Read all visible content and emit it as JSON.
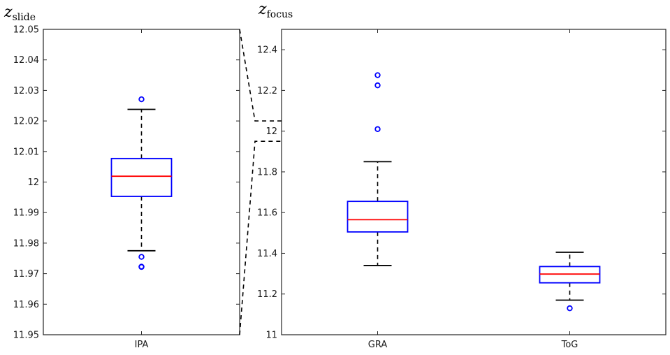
{
  "chart_data": [
    {
      "type": "box",
      "title_symbol": "z",
      "title_subscript": "slide",
      "ylim": [
        11.95,
        12.05
      ],
      "yticks": [
        "11.95",
        "11.96",
        "11.97",
        "11.98",
        "11.99",
        "12",
        "12.01",
        "12.02",
        "12.03",
        "12.04",
        "12.05"
      ],
      "categories": [
        "IPA"
      ],
      "boxes": [
        {
          "label": "IPA",
          "whisker_low": 11.9775,
          "q1": 11.9953,
          "median": 12.0019,
          "q3": 12.0077,
          "whisker_high": 12.0238,
          "outliers": [
            12.0271,
            11.9755,
            11.9722,
            11.9723
          ]
        }
      ],
      "colors": {
        "box": "#0000ff",
        "median": "#ff0000",
        "whisker": "#000000",
        "outlier": "#0000ff"
      }
    },
    {
      "type": "box",
      "title_symbol": "z",
      "title_subscript": "focus",
      "ylim": [
        11.0,
        12.5
      ],
      "yticks": [
        "11",
        "11.2",
        "11.4",
        "11.6",
        "11.8",
        "12",
        "12.2",
        "12.4"
      ],
      "categories": [
        "GRA",
        "ToG"
      ],
      "boxes": [
        {
          "label": "GRA",
          "whisker_low": 11.34,
          "q1": 11.505,
          "median": 11.565,
          "q3": 11.655,
          "whisker_high": 11.85,
          "outliers": [
            12.275,
            12.225,
            12.01
          ]
        },
        {
          "label": "ToG",
          "whisker_low": 11.17,
          "q1": 11.255,
          "median": 11.298,
          "q3": 11.335,
          "whisker_high": 11.405,
          "outliers": [
            11.13
          ]
        }
      ],
      "colors": {
        "box": "#0000ff",
        "median": "#ff0000",
        "whisker": "#000000",
        "outlier": "#0000ff"
      }
    }
  ]
}
